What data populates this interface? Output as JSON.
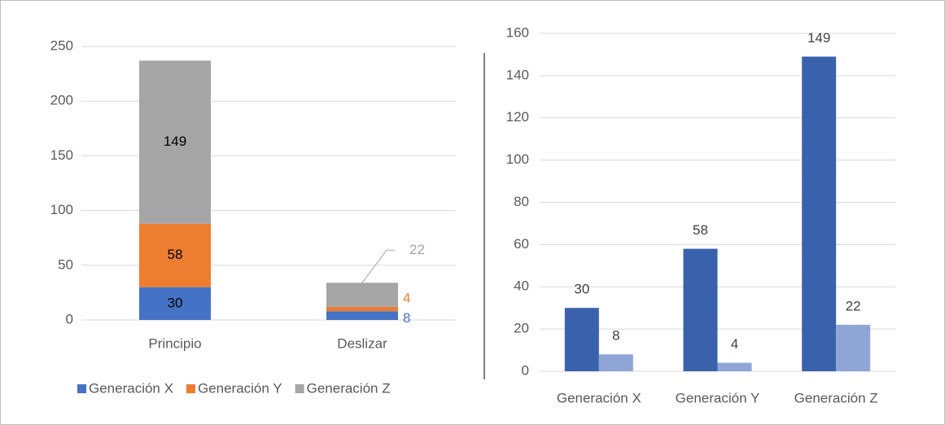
{
  "chart_data": [
    {
      "type": "stacked_bar",
      "categories": [
        "Principio",
        "Deslizar"
      ],
      "series": [
        {
          "name": "Generación X",
          "color": "#4472c4",
          "values": [
            30,
            8
          ]
        },
        {
          "name": "Generación Y",
          "color": "#ed7d31",
          "values": [
            58,
            4
          ]
        },
        {
          "name": "Generación Z",
          "color": "#a5a5a5",
          "values": [
            149,
            22
          ]
        }
      ],
      "ylim": [
        0,
        250
      ],
      "yticks": [
        0,
        50,
        100,
        150,
        200,
        250
      ],
      "grid": true,
      "legend": "bottom"
    },
    {
      "type": "bar",
      "categories": [
        "Generación X",
        "Generación Y",
        "Generación Z"
      ],
      "series": [
        {
          "color": "#3a62ac",
          "values": [
            30,
            58,
            149
          ]
        },
        {
          "color": "#8fa5d6",
          "values": [
            8,
            4,
            22
          ]
        }
      ],
      "ylim": [
        0,
        160
      ],
      "yticks": [
        0,
        20,
        40,
        60,
        80,
        100,
        120,
        140,
        160
      ],
      "grid": true
    }
  ]
}
